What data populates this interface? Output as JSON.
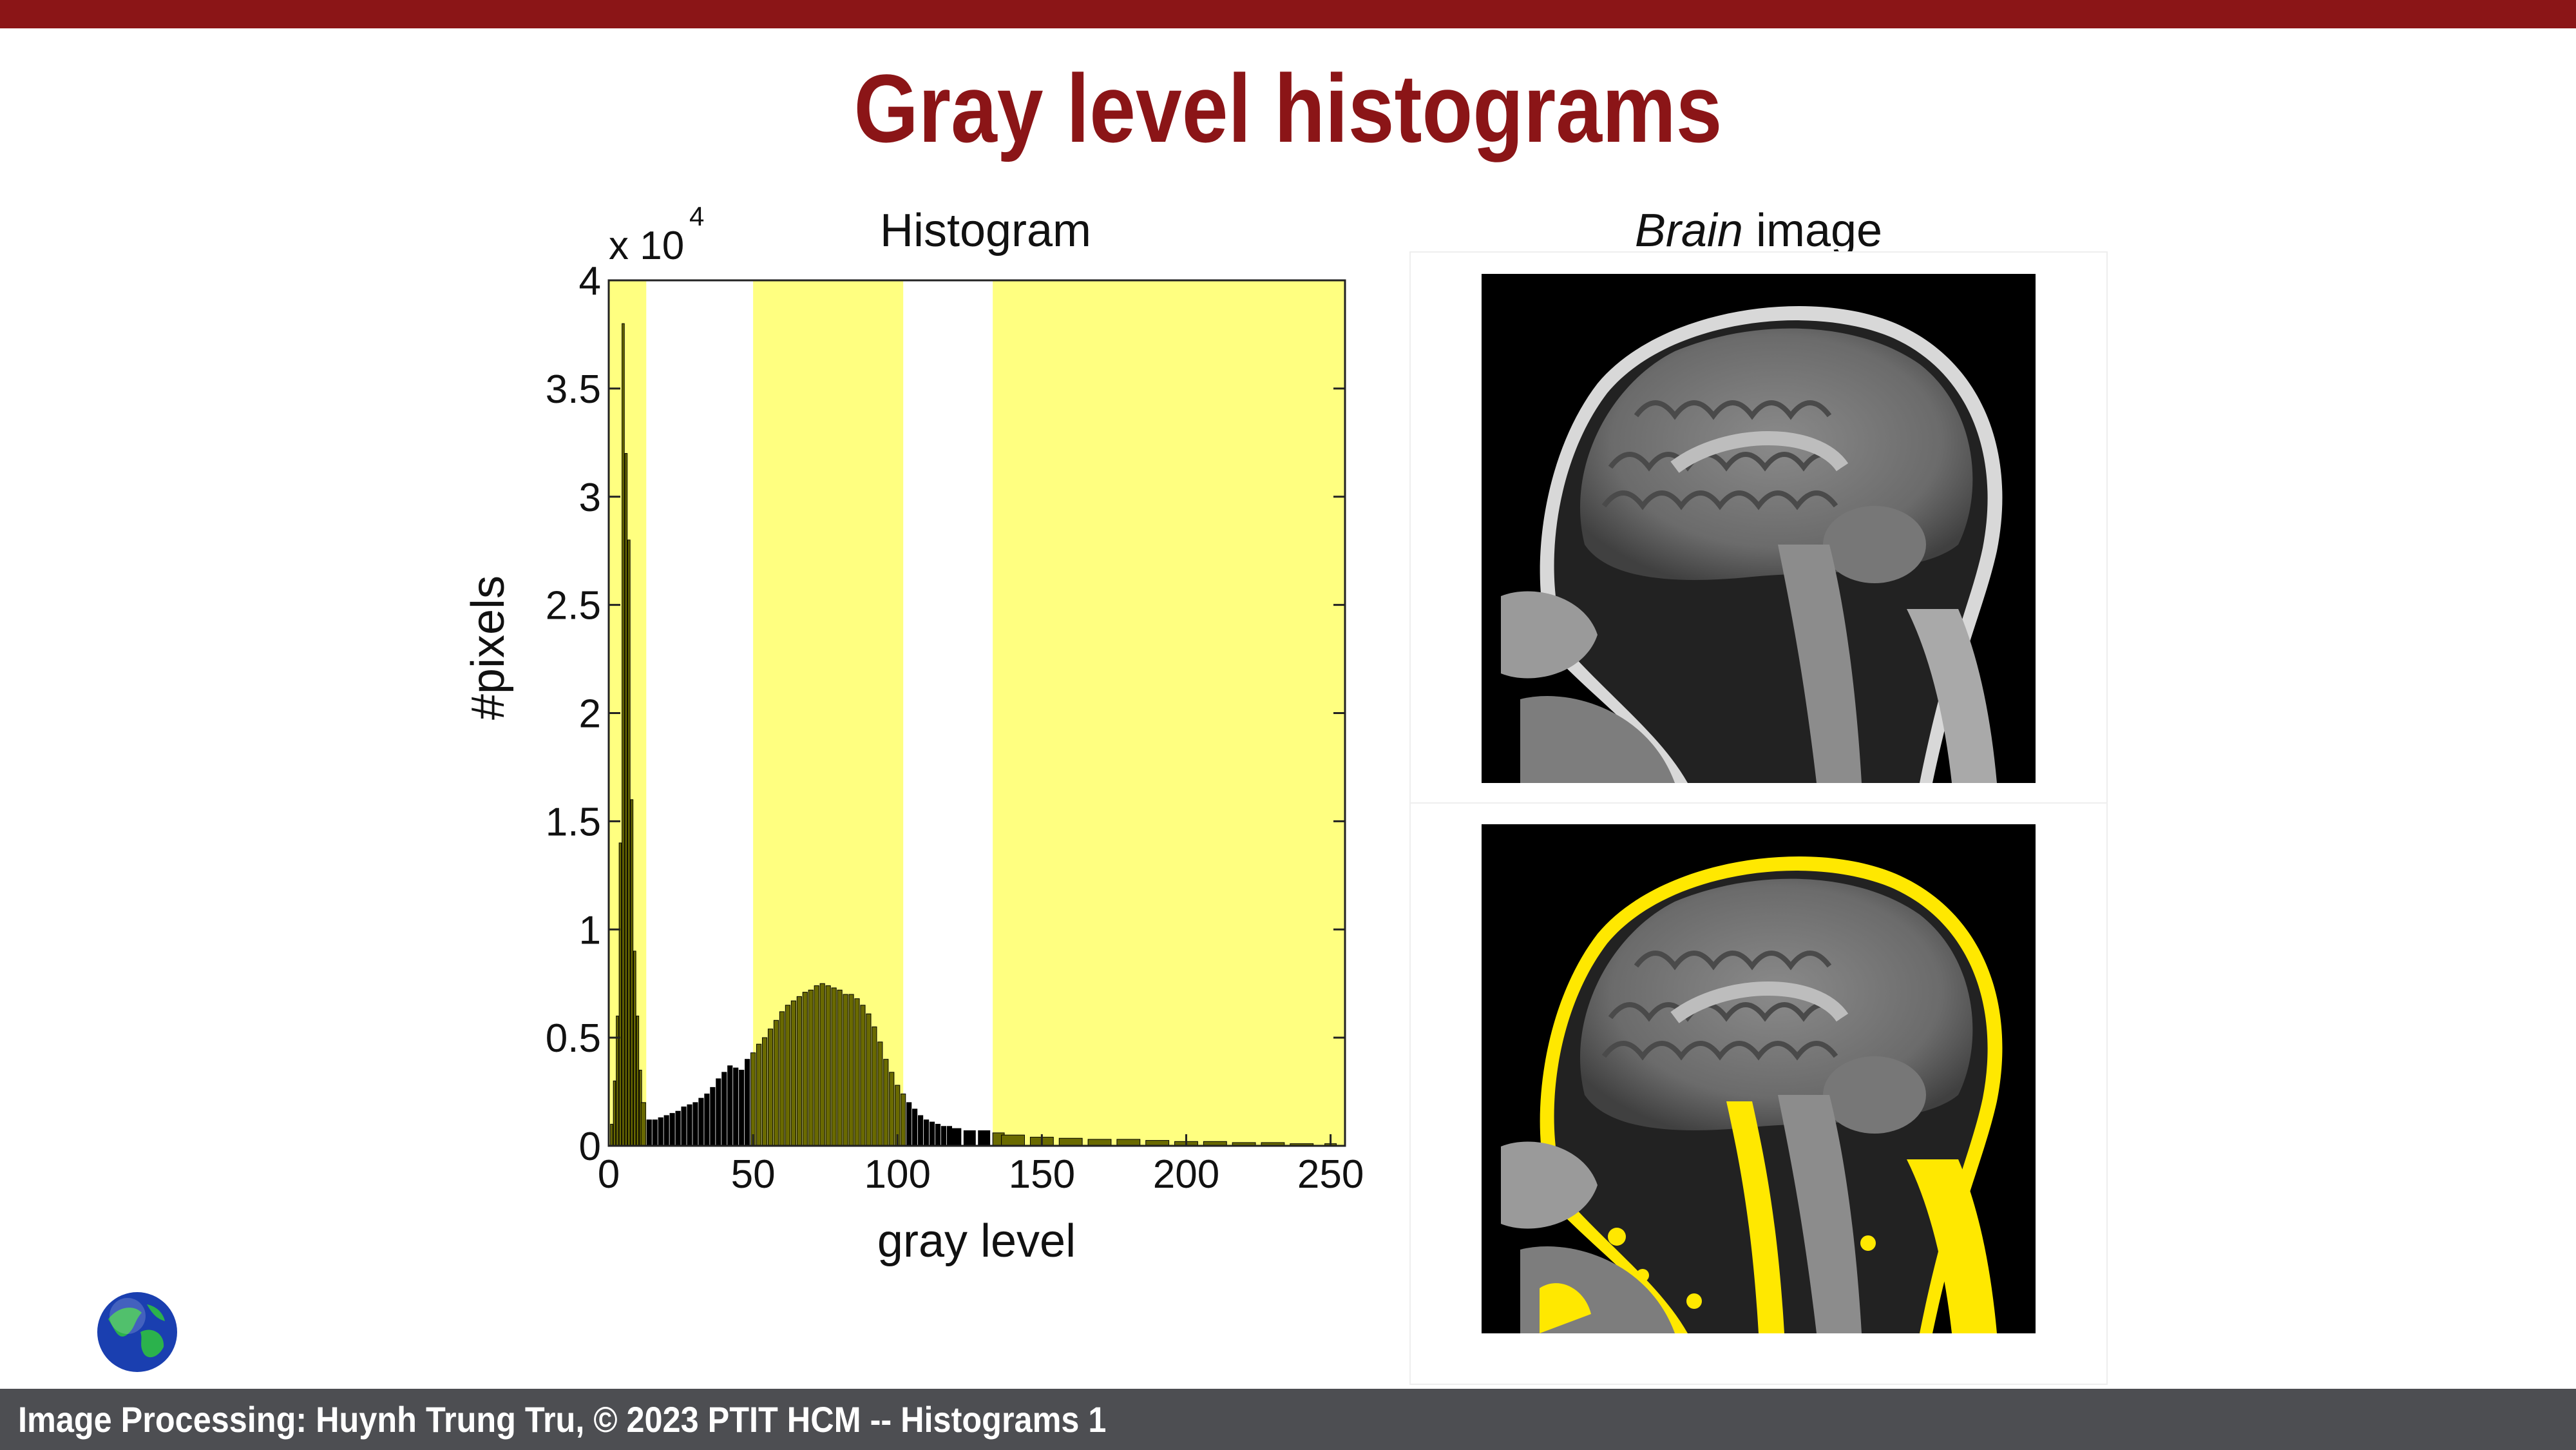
{
  "slide": {
    "title": "Gray level histograms",
    "footer": "Image Processing: Huynh Trung Tru, © 2023 PTIT HCM -- Histograms 1"
  },
  "histogram_panel": {
    "title": "Histogram",
    "multiplier_label": "x 10",
    "multiplier_exponent": "4"
  },
  "brain_panel": {
    "title_italic": "Brain",
    "title_rest": " image",
    "images": [
      "original-mri",
      "mri-with-yellow-highlight"
    ]
  },
  "colors": {
    "accent": "#8b1517",
    "footer_bg": "#4d4e52",
    "highlight": "#ffff80",
    "bar": "#000000"
  },
  "chart_data": {
    "type": "bar",
    "title": "Histogram",
    "xlabel": "gray level",
    "ylabel": "#pixels",
    "xlim": [
      0,
      255
    ],
    "ylim": [
      0,
      4
    ],
    "y_multiplier": "x 10^4",
    "x_ticks": [
      0,
      50,
      100,
      150,
      200,
      250
    ],
    "y_ticks": [
      0,
      0.5,
      1,
      1.5,
      2,
      2.5,
      3,
      3.5,
      4
    ],
    "y_tick_labels": [
      "0",
      "0.5",
      "1",
      "1.5",
      "2",
      "2.5",
      "3",
      "3.5",
      "4"
    ],
    "highlight_ranges": [
      [
        0,
        13
      ],
      [
        50,
        102
      ],
      [
        133,
        255
      ]
    ],
    "x": [
      1,
      2,
      3,
      4,
      5,
      6,
      7,
      8,
      9,
      10,
      11,
      12,
      14,
      16,
      18,
      20,
      22,
      24,
      26,
      28,
      30,
      32,
      34,
      36,
      38,
      40,
      42,
      44,
      46,
      48,
      50,
      52,
      54,
      56,
      58,
      60,
      62,
      64,
      66,
      68,
      70,
      72,
      74,
      76,
      78,
      80,
      82,
      84,
      86,
      88,
      90,
      92,
      94,
      96,
      98,
      100,
      102,
      104,
      106,
      108,
      110,
      112,
      114,
      116,
      118,
      120,
      125,
      130,
      135,
      140,
      150,
      160,
      170,
      180,
      190,
      200,
      210,
      220,
      230,
      240,
      250
    ],
    "values": [
      0.1,
      0.3,
      0.6,
      1.4,
      3.8,
      3.2,
      2.8,
      1.6,
      0.9,
      0.6,
      0.35,
      0.2,
      0.12,
      0.12,
      0.13,
      0.14,
      0.15,
      0.16,
      0.18,
      0.19,
      0.2,
      0.22,
      0.24,
      0.27,
      0.31,
      0.34,
      0.37,
      0.36,
      0.35,
      0.4,
      0.43,
      0.47,
      0.5,
      0.54,
      0.58,
      0.62,
      0.65,
      0.67,
      0.69,
      0.71,
      0.72,
      0.74,
      0.75,
      0.74,
      0.73,
      0.72,
      0.7,
      0.7,
      0.68,
      0.65,
      0.61,
      0.55,
      0.48,
      0.4,
      0.34,
      0.28,
      0.24,
      0.2,
      0.17,
      0.14,
      0.12,
      0.11,
      0.1,
      0.09,
      0.09,
      0.08,
      0.07,
      0.07,
      0.06,
      0.05,
      0.04,
      0.035,
      0.03,
      0.03,
      0.025,
      0.02,
      0.02,
      0.015,
      0.015,
      0.01,
      0.01
    ]
  }
}
